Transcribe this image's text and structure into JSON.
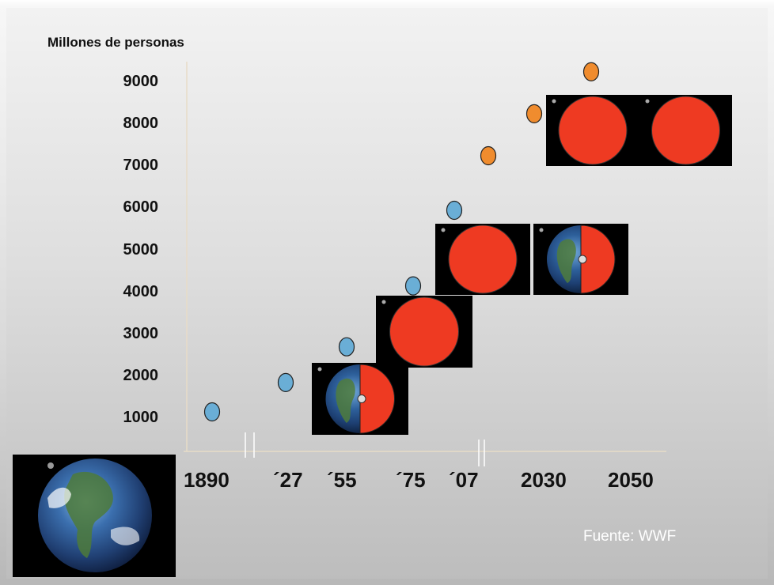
{
  "chart_data": {
    "type": "scatter",
    "title": "",
    "ylabel": "Millones de personas",
    "xlabel": "",
    "yticks": [
      "1000",
      "2000",
      "3000",
      "4000",
      "5000",
      "6000",
      "7000",
      "8000",
      "9000"
    ],
    "xticks": [
      "1890",
      "´27",
      "´55",
      "´75",
      "´07",
      "2030",
      "2050"
    ],
    "ylim": [
      500,
      9500
    ],
    "series": [
      {
        "color": "#6aaed6",
        "points": [
          {
            "x": "1890",
            "y": 1150
          },
          {
            "x": "´27",
            "y": 1850
          },
          {
            "x": "´55",
            "y": 2700
          },
          {
            "x": "´75",
            "y": 4150
          },
          {
            "x": "´07",
            "y": 5950
          }
        ]
      },
      {
        "color": "#f08c2e",
        "points": [
          {
            "x": "2010",
            "y": 7250
          },
          {
            "x": "2020",
            "y": 8250
          },
          {
            "x": "2030",
            "y": 9250
          }
        ]
      }
    ],
    "earth_markers": [
      {
        "near": "´55",
        "fill_fraction": 0.5
      },
      {
        "near": "´75",
        "fill_fraction": 1.0
      },
      {
        "near": "´07",
        "fill_fraction": 1.0
      },
      {
        "near": "2030",
        "fill_fraction": 0.5
      },
      {
        "near": "2050",
        "fill_fraction": 1.0
      },
      {
        "near": "2050",
        "fill_fraction": 1.0
      }
    ],
    "grid": false
  },
  "source": "Fuente: WWF",
  "colors": {
    "earth_red": "#ee3a22",
    "past_dot": "#6aaed6",
    "future_dot": "#f08c2e"
  }
}
